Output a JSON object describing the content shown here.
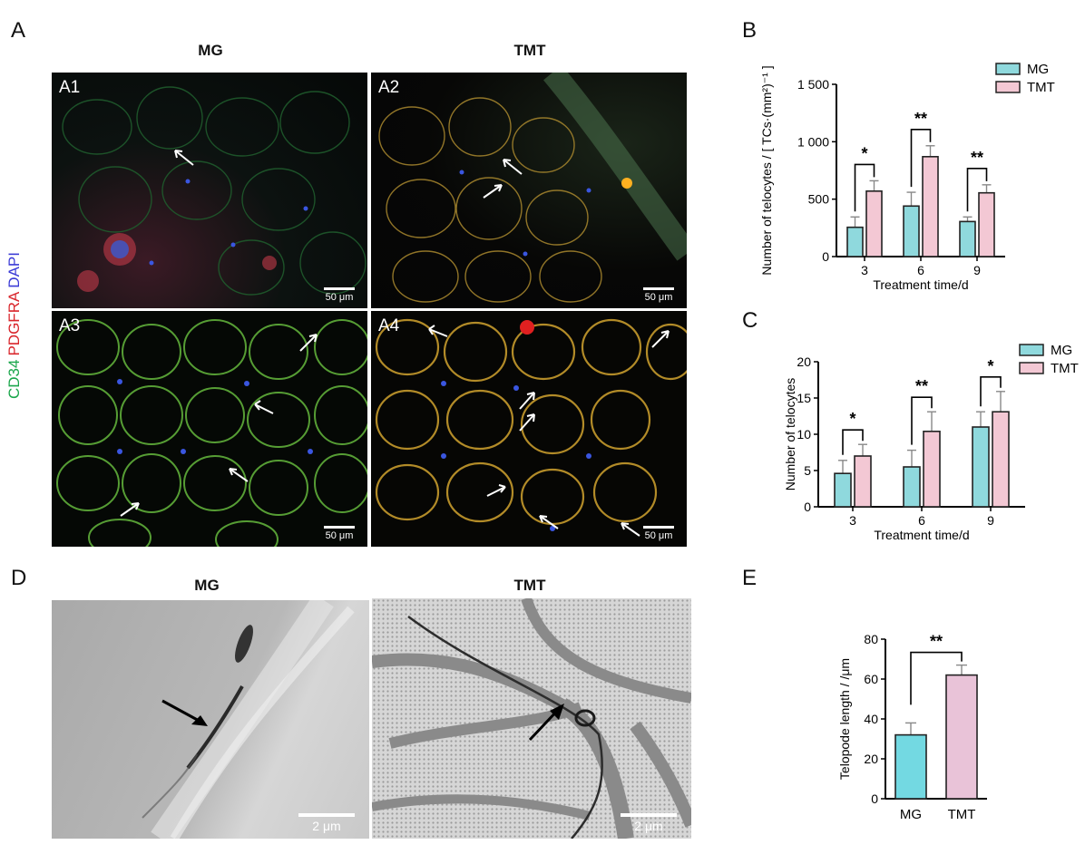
{
  "panels": {
    "A": {
      "label": "A",
      "col_titles": [
        "MG",
        "TMT"
      ],
      "stain_label": [
        {
          "text": "CD34",
          "color": "#1aa64b"
        },
        {
          "text": "PDGFRA",
          "color": "#d9252b"
        },
        {
          "text": "DAPI",
          "color": "#3a3ad6"
        }
      ],
      "tiles": [
        {
          "label": "A1",
          "scale": "50 μm"
        },
        {
          "label": "A2",
          "scale": "50 μm"
        },
        {
          "label": "A3",
          "scale": "50 μm"
        },
        {
          "label": "A4",
          "scale": "50 μm"
        }
      ]
    },
    "D": {
      "label": "D",
      "col_titles": [
        "MG",
        "TMT"
      ],
      "scales": [
        "2 μm",
        "2 μm"
      ]
    },
    "B": {
      "label": "B"
    },
    "C": {
      "label": "C"
    },
    "E": {
      "label": "E"
    }
  },
  "colors": {
    "mg": "#8fd9dd",
    "tmt": "#f3c8d4",
    "mg_e": "#73d9e2",
    "tmt_e": "#e9c3d8"
  },
  "chart_data": [
    {
      "id": "B",
      "type": "bar",
      "categories": [
        "3",
        "6",
        "9"
      ],
      "series": [
        {
          "name": "MG",
          "values": [
            255,
            440,
            305
          ],
          "errors": [
            90,
            120,
            40
          ]
        },
        {
          "name": "TMT",
          "values": [
            570,
            870,
            555
          ],
          "errors": [
            90,
            95,
            70
          ]
        }
      ],
      "ylabel": "Number of telocytes / [ TCs·(mm²)⁻¹ ]",
      "xlabel": "Treatment time/d",
      "ylim": [
        0,
        1500
      ],
      "yticks": [
        0,
        500,
        1000,
        1500
      ],
      "ytick_labels": [
        "0",
        "500",
        "1 000",
        "1 500"
      ],
      "significance": [
        "*",
        "**",
        "**"
      ],
      "legend": "top-right"
    },
    {
      "id": "C",
      "type": "bar",
      "categories": [
        "3",
        "6",
        "9"
      ],
      "series": [
        {
          "name": "MG",
          "values": [
            4.6,
            5.5,
            11.0
          ],
          "errors": [
            1.8,
            2.3,
            2.1
          ]
        },
        {
          "name": "TMT",
          "values": [
            7.0,
            10.4,
            13.1
          ],
          "errors": [
            1.6,
            2.7,
            2.8
          ]
        }
      ],
      "ylabel": "Number of telocytes",
      "xlabel": "Treatment time/d",
      "ylim": [
        0,
        20
      ],
      "yticks": [
        0,
        5,
        10,
        15,
        20
      ],
      "ytick_labels": [
        "0",
        "5",
        "10",
        "15",
        "20"
      ],
      "significance": [
        "*",
        "**",
        "*"
      ],
      "legend": "top-right"
    },
    {
      "id": "E",
      "type": "bar",
      "categories": [
        "MG",
        "TMT"
      ],
      "values": [
        32,
        62
      ],
      "errors": [
        6,
        5
      ],
      "ylabel": "Telopode length / /μm",
      "ylim": [
        0,
        80
      ],
      "yticks": [
        0,
        20,
        40,
        60,
        80
      ],
      "ytick_labels": [
        "0",
        "20",
        "40",
        "60",
        "80"
      ],
      "significance": [
        "**"
      ]
    }
  ]
}
